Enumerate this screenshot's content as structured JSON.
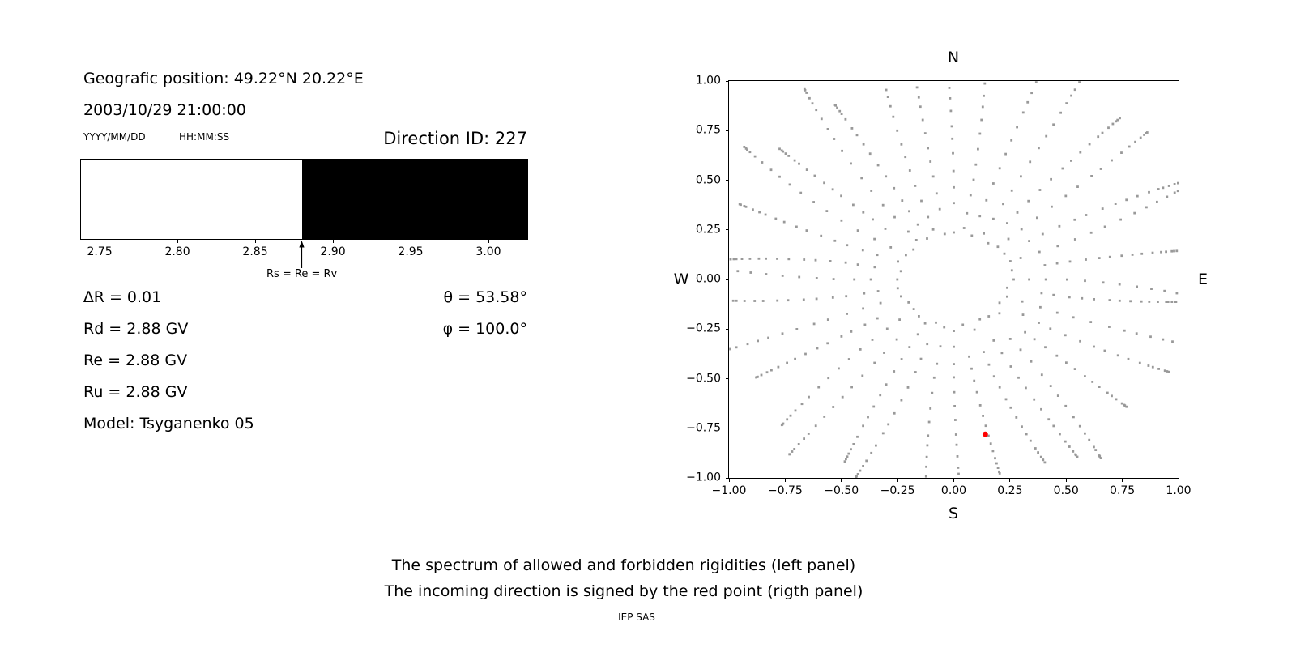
{
  "colors": {
    "background": "#ffffff",
    "text": "#000000",
    "dot_gray": "#999999",
    "red_point": "#ff0000",
    "forbidden_fill": "#000000",
    "allowed_fill": "#ffffff"
  },
  "left_panel": {
    "position": "Geografic position: 49.22°N 20.22°E",
    "datetime": "2003/10/29 21:00:00",
    "date_format_label": "YYYY/MM/DD",
    "time_format_label": "HH:MM:SS",
    "direction_id": "Direction ID: 227",
    "arrow_label": "Rs = Re = Rv",
    "delta_r": "∆R = 0.01",
    "rd": "Rd = 2.88 GV",
    "re": "Re = 2.88 GV",
    "ru": "Ru = 2.88 GV",
    "model": "Model: Tsyganenko 05",
    "theta": "θ = 53.58°",
    "phi": "φ = 100.0°"
  },
  "right_panel": {
    "compass": {
      "north": "N",
      "south": "S",
      "east": "E",
      "west": "W"
    }
  },
  "captions": {
    "line1": "The spectrum of allowed and forbidden rigidities (left panel)",
    "line2": "The incoming direction is signed by the red point (rigth panel)",
    "credit": "IEP SAS"
  },
  "chart_data": [
    {
      "type": "bar",
      "name": "rigidity-spectrum",
      "title": "The spectrum of allowed and forbidden rigidities",
      "x_range": [
        2.738,
        3.025
      ],
      "x_ticks": [
        2.75,
        2.8,
        2.85,
        2.9,
        2.95,
        3.0
      ],
      "allowed_region": [
        2.738,
        2.88
      ],
      "forbidden_region": [
        2.88,
        3.025
      ],
      "cutoff_rigidity_gv": 2.88,
      "annotation": {
        "x": 2.88,
        "label": "Rs = Re = Rv"
      },
      "values": {
        "delta_r": 0.01,
        "rd_gv": 2.88,
        "re_gv": 2.88,
        "ru_gv": 2.88,
        "theta_deg": 53.58,
        "phi_deg": 100.0,
        "model": "Tsyganenko 05",
        "direction_id": 227,
        "latitude": "49.22°N",
        "longitude": "20.22°E",
        "datetime": "2003/10/29 21:00:00"
      },
      "legend": "off",
      "grid": "off"
    },
    {
      "type": "scatter",
      "name": "incoming-direction-map",
      "xlim": [
        -1.0,
        1.0
      ],
      "ylim": [
        -1.0,
        1.0
      ],
      "x_ticks": [
        -1.0,
        -0.75,
        -0.5,
        -0.25,
        0.0,
        0.25,
        0.5,
        0.75,
        1.0
      ],
      "y_ticks": [
        -1.0,
        -0.75,
        -0.5,
        -0.25,
        0.0,
        0.25,
        0.5,
        0.75,
        1.0
      ],
      "compass": {
        "top": "N",
        "bottom": "S",
        "left": "W",
        "right": "E"
      },
      "red_point": {
        "x": 0.14,
        "y": -0.78
      },
      "grid": "off",
      "legend": "off",
      "pattern": {
        "description": "36 radial spokes of small gray dots (every 10 deg), dots bunch toward the outer edge, plus an inner ring of dots at r=0.25; red dot marks incoming direction",
        "n_spokes": 36,
        "ring_radius": 0.25,
        "spoke_inner_radius": 0.36,
        "spoke_outer_radius": 1.1,
        "dots_per_spoke": 16,
        "curvature_deg": 9
      }
    }
  ]
}
